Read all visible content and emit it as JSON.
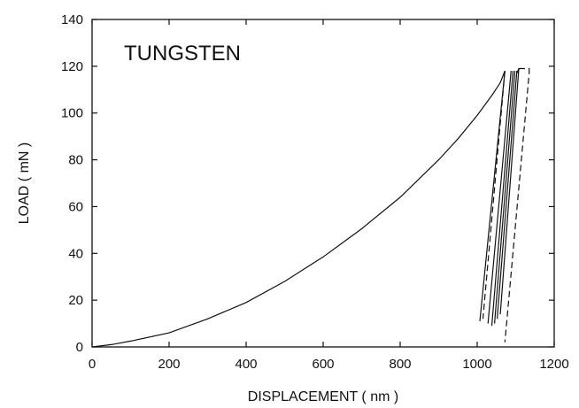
{
  "chart_data": {
    "type": "line",
    "annotation": "TUNGSTEN",
    "xlabel": "DISPLACEMENT ( nm )",
    "ylabel": "LOAD ( mN )",
    "xlim": [
      0,
      1200
    ],
    "ylim": [
      0,
      140
    ],
    "xticks": [
      0,
      200,
      400,
      600,
      800,
      1000,
      1200
    ],
    "yticks": [
      0,
      20,
      40,
      60,
      80,
      100,
      120,
      140
    ],
    "grid": false,
    "legend": "none",
    "series": [
      {
        "style": "solid",
        "x": [
          0,
          50,
          100,
          200,
          300,
          400,
          500,
          600,
          700,
          800,
          900,
          950,
          1000,
          1040,
          1060,
          1072
        ],
        "y": [
          0,
          1,
          2.5,
          6,
          12,
          19,
          28,
          38.5,
          50.5,
          64,
          80,
          89,
          99,
          108,
          113,
          118
        ]
      },
      {
        "style": "solid",
        "x": [
          1072,
          1007
        ],
        "y": [
          118,
          11
        ]
      },
      {
        "style": "dashed",
        "x": [
          1072,
          1015
        ],
        "y": [
          118,
          12
        ]
      },
      {
        "style": "solid",
        "x": [
          1088,
          1028
        ],
        "y": [
          118,
          10
        ]
      },
      {
        "style": "solid",
        "x": [
          1093,
          1038
        ],
        "y": [
          118,
          9
        ]
      },
      {
        "style": "solid",
        "x": [
          1098,
          1045
        ],
        "y": [
          118,
          10
        ]
      },
      {
        "style": "solid",
        "x": [
          1103,
          1052
        ],
        "y": [
          118,
          12
        ]
      },
      {
        "style": "solid",
        "x": [
          1108,
          1060
        ],
        "y": [
          119,
          14
        ]
      },
      {
        "style": "solid",
        "x": [
          1103,
          1108,
          1112
        ],
        "y": [
          117,
          119,
          119
        ]
      },
      {
        "style": "dashed",
        "x": [
          1108,
          1135,
          1135,
          1072
        ],
        "y": [
          119,
          119,
          117,
          2
        ]
      }
    ]
  }
}
